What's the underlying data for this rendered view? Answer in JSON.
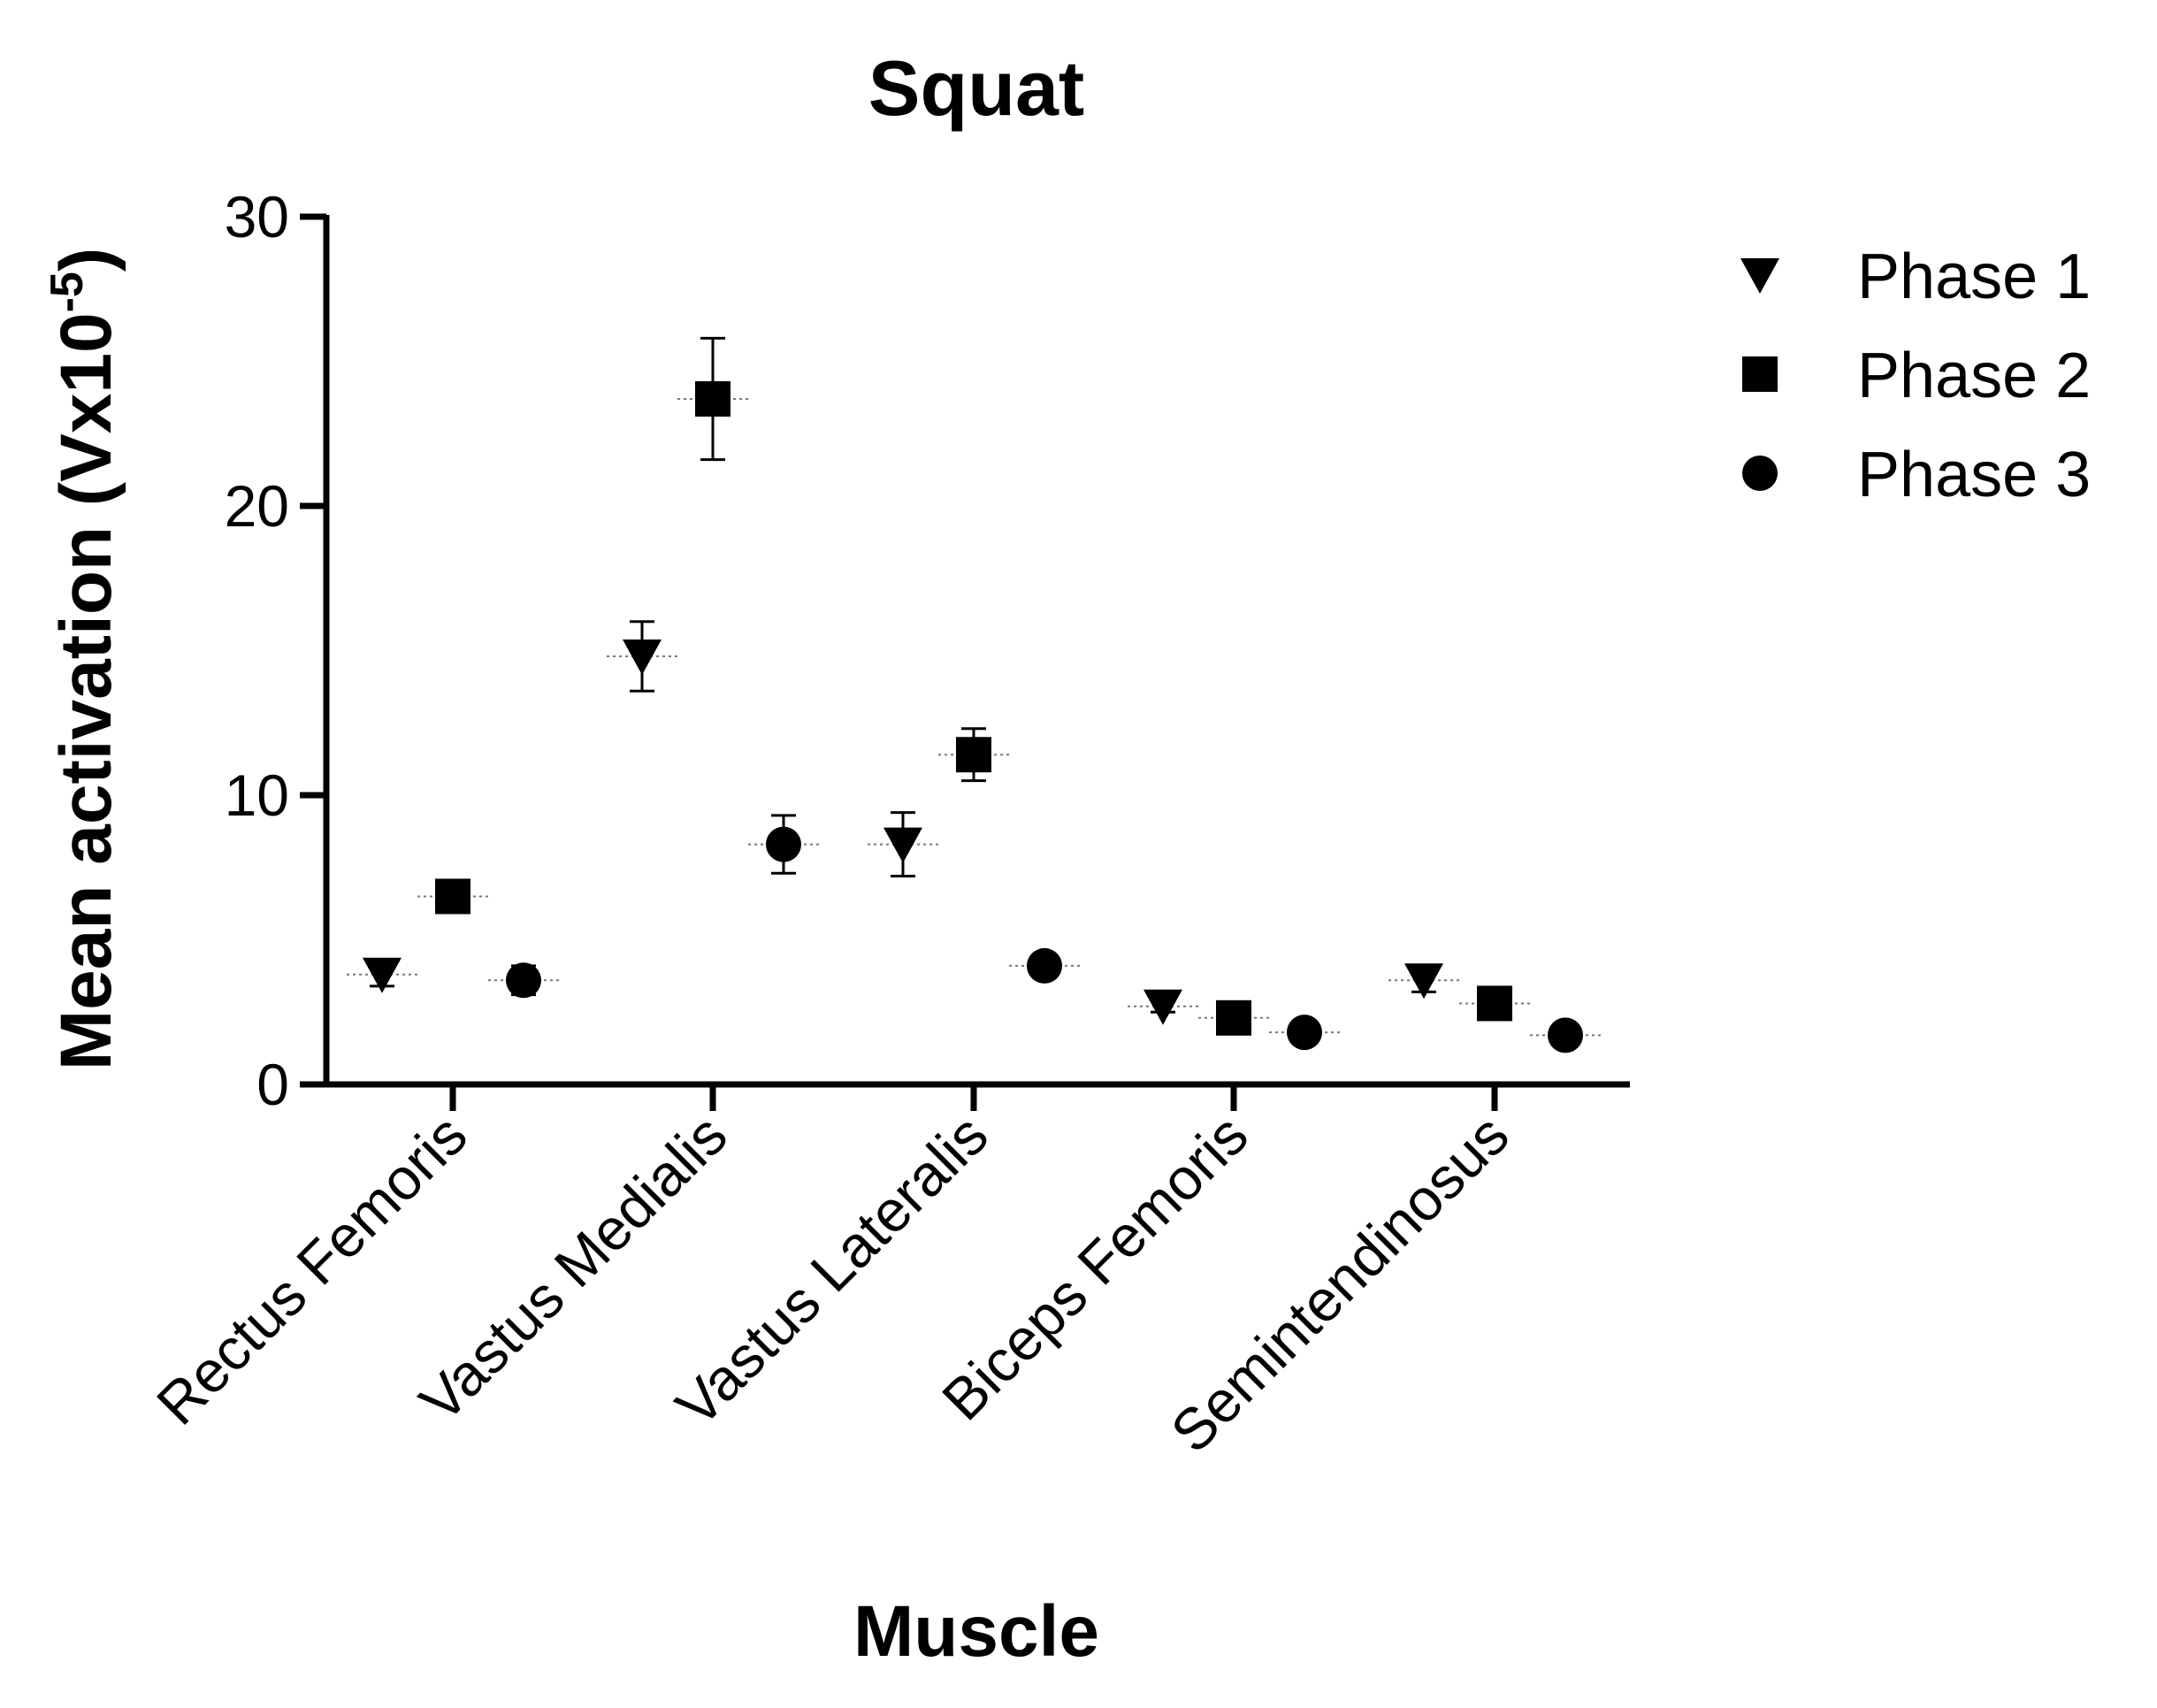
{
  "chart_data": {
    "type": "scatter",
    "title": "Squat",
    "xlabel": "Muscle",
    "ylabel_main": "Mean activation (Vx10",
    "ylabel_sup": "-5",
    "ylabel_end": ")",
    "ylim": [
      0,
      30
    ],
    "yticks": [
      0,
      10,
      20,
      30
    ],
    "categories": [
      "Rectus Femoris",
      "Vastus Medialis",
      "Vastus Lateralis",
      "Biceps Femoris",
      "Semintendinosus"
    ],
    "legend_position": "top-right",
    "series": [
      {
        "name": "Phase 1",
        "marker": "triangle-down",
        "values": [
          3.8,
          14.8,
          8.3,
          2.7,
          3.6
        ],
        "errors": [
          0.4,
          1.2,
          1.1,
          0.2,
          0.4
        ]
      },
      {
        "name": "Phase 2",
        "marker": "square",
        "values": [
          6.5,
          23.7,
          11.4,
          2.3,
          2.8
        ],
        "errors": [
          0.2,
          2.1,
          0.9,
          0.1,
          0.2
        ]
      },
      {
        "name": "Phase 3",
        "marker": "circle",
        "values": [
          3.6,
          8.3,
          4.1,
          1.8,
          1.7
        ],
        "errors": [
          0.5,
          1.0,
          0.2,
          0.1,
          0.1
        ]
      }
    ]
  }
}
